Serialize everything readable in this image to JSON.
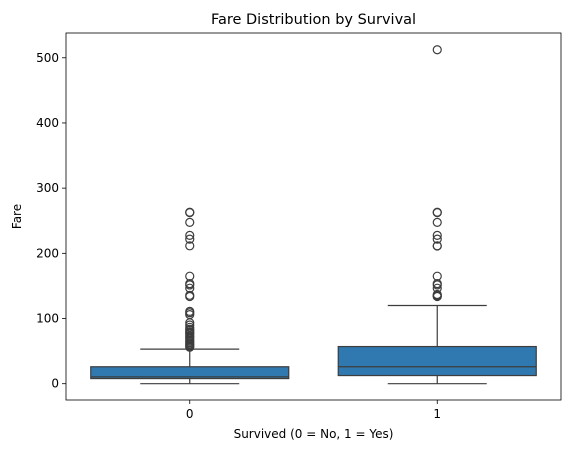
{
  "chart_data": {
    "type": "box",
    "title": "Fare Distribution by Survival",
    "xlabel": "Survived (0 = No, 1 = Yes)",
    "ylabel": "Fare",
    "ylim": [
      -25,
      538
    ],
    "yticks": [
      0,
      100,
      200,
      300,
      400,
      500
    ],
    "box_color": "#2f78b0",
    "edge_color": "#3d3d3d",
    "groups": [
      {
        "label": "0",
        "min": 0,
        "q1": 7.85,
        "median": 10.5,
        "q3": 26,
        "whisker_high": 53,
        "outliers": [
          56,
          57.5,
          59.5,
          61,
          63,
          65,
          67,
          69.5,
          71.5,
          73.5,
          76.5,
          78,
          79.5,
          82,
          83.5,
          86.5,
          90,
          93.5,
          106,
          108.9,
          110.9,
          133.7,
          135.6,
          146.5,
          151.5,
          153.5,
          164.9,
          211.5,
          221.8,
          227.5,
          247.5,
          262.4,
          263
        ]
      },
      {
        "label": "1",
        "min": 0,
        "q1": 12.5,
        "median": 26,
        "q3": 57,
        "whisker_high": 120,
        "outliers": [
          133.7,
          134.5,
          135.6,
          136.8,
          146.5,
          151.5,
          153.5,
          164.9,
          211.3,
          211.5,
          221.8,
          227.5,
          247.5,
          262.4,
          263,
          512.3
        ]
      }
    ]
  }
}
